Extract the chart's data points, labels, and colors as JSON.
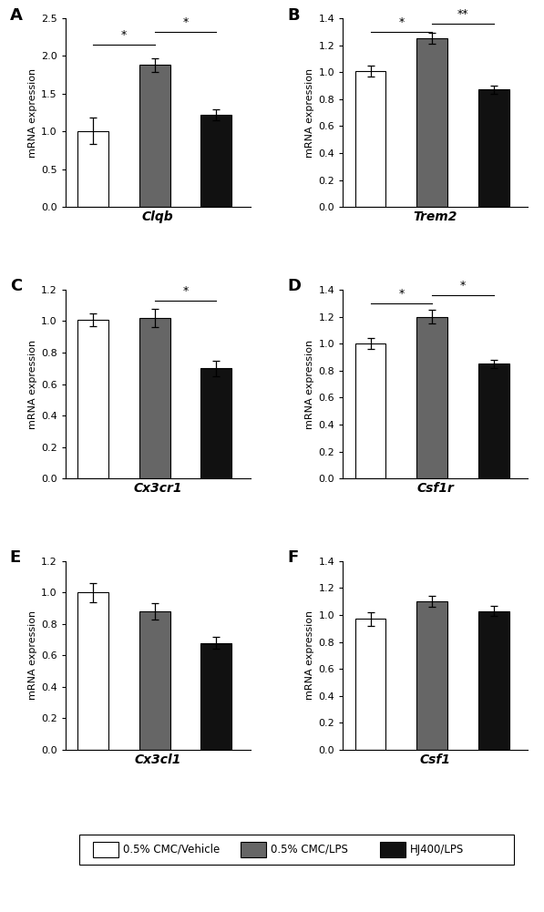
{
  "panels": [
    {
      "label": "A",
      "xlabel": "Clqb",
      "ylim": [
        0,
        2.5
      ],
      "yticks": [
        0.0,
        0.5,
        1.0,
        1.5,
        2.0,
        2.5
      ],
      "values": [
        1.01,
        1.88,
        1.22
      ],
      "errors": [
        0.18,
        0.09,
        0.07
      ],
      "significance": [
        {
          "bars": [
            0,
            1
          ],
          "label": "*",
          "y": 2.15
        },
        {
          "bars": [
            1,
            2
          ],
          "label": "*",
          "y": 2.32
        }
      ]
    },
    {
      "label": "B",
      "xlabel": "Trem2",
      "ylim": [
        0,
        1.4
      ],
      "yticks": [
        0.0,
        0.2,
        0.4,
        0.6,
        0.8,
        1.0,
        1.2,
        1.4
      ],
      "values": [
        1.01,
        1.25,
        0.87
      ],
      "errors": [
        0.04,
        0.04,
        0.03
      ],
      "significance": [
        {
          "bars": [
            0,
            1
          ],
          "label": "*",
          "y": 1.3
        },
        {
          "bars": [
            1,
            2
          ],
          "label": "**",
          "y": 1.36
        }
      ]
    },
    {
      "label": "C",
      "xlabel": "Cx3cr1",
      "ylim": [
        0,
        1.2
      ],
      "yticks": [
        0.0,
        0.2,
        0.4,
        0.6,
        0.8,
        1.0,
        1.2
      ],
      "values": [
        1.01,
        1.02,
        0.7
      ],
      "errors": [
        0.04,
        0.06,
        0.05
      ],
      "significance": [
        {
          "bars": [
            1,
            2
          ],
          "label": "*",
          "y": 1.13
        }
      ]
    },
    {
      "label": "D",
      "xlabel": "Csf1r",
      "ylim": [
        0,
        1.4
      ],
      "yticks": [
        0.0,
        0.2,
        0.4,
        0.6,
        0.8,
        1.0,
        1.2,
        1.4
      ],
      "values": [
        1.0,
        1.2,
        0.85
      ],
      "errors": [
        0.04,
        0.05,
        0.03
      ],
      "significance": [
        {
          "bars": [
            0,
            1
          ],
          "label": "*",
          "y": 1.3
        },
        {
          "bars": [
            1,
            2
          ],
          "label": "*",
          "y": 1.36
        }
      ]
    },
    {
      "label": "E",
      "xlabel": "Cx3cl1",
      "ylim": [
        0,
        1.2
      ],
      "yticks": [
        0.0,
        0.2,
        0.4,
        0.6,
        0.8,
        1.0,
        1.2
      ],
      "values": [
        1.0,
        0.88,
        0.68
      ],
      "errors": [
        0.06,
        0.05,
        0.04
      ],
      "significance": []
    },
    {
      "label": "F",
      "xlabel": "Csf1",
      "ylim": [
        0,
        1.4
      ],
      "yticks": [
        0.0,
        0.2,
        0.4,
        0.6,
        0.8,
        1.0,
        1.2,
        1.4
      ],
      "values": [
        0.97,
        1.1,
        1.03
      ],
      "errors": [
        0.05,
        0.04,
        0.04
      ],
      "significance": []
    }
  ],
  "bar_colors": [
    "#ffffff",
    "#666666",
    "#111111"
  ],
  "bar_edgecolor": "#000000",
  "bar_width": 0.5,
  "ylabel": "mRNA expression",
  "legend_labels": [
    "0.5% CMC/Vehicle",
    "0.5% CMC/LPS",
    "HJ400/LPS"
  ],
  "legend_colors": [
    "#ffffff",
    "#666666",
    "#111111"
  ],
  "figsize": [
    5.97,
    10.01
  ],
  "dpi": 100
}
